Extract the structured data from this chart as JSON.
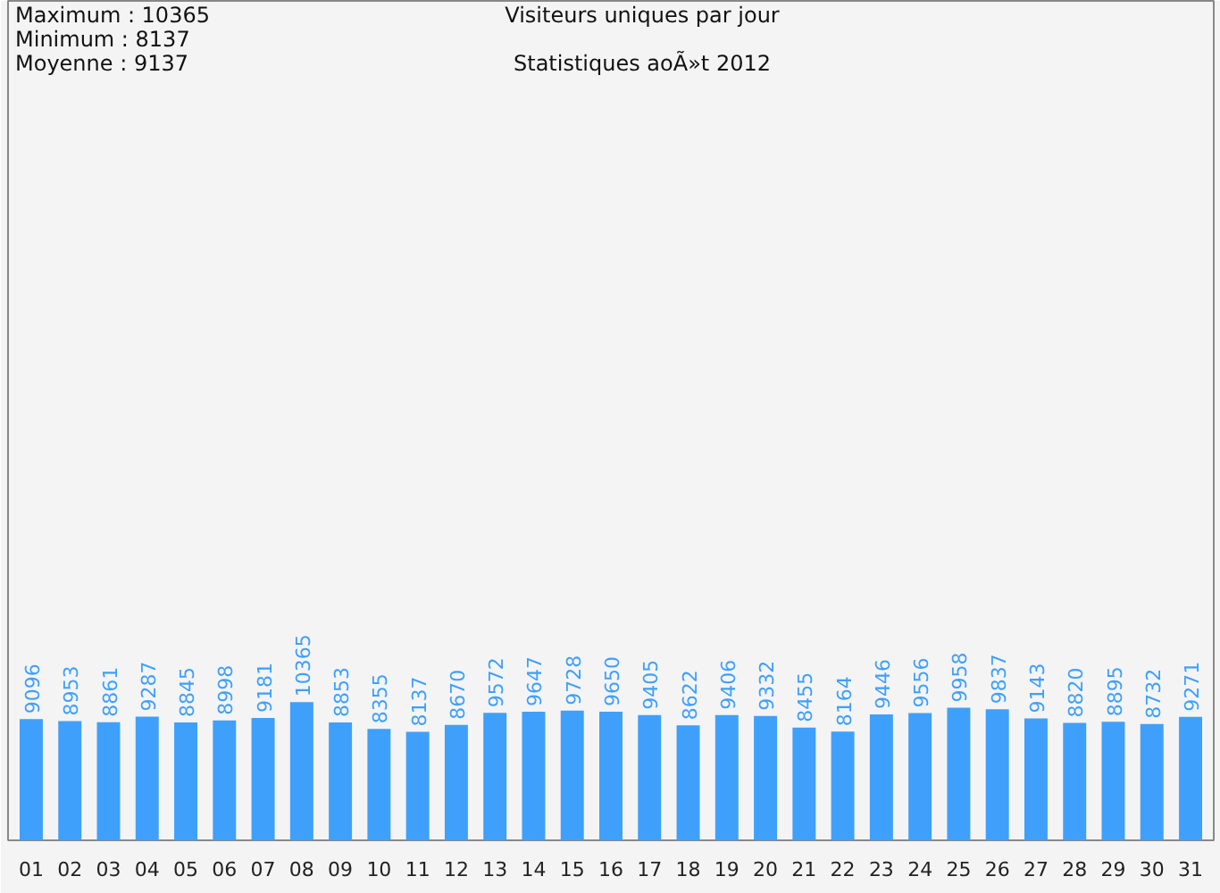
{
  "chart_data": {
    "type": "bar",
    "title": "Visiteurs uniques par jour",
    "subtitle": "Statistiques aoÃ»t 2012",
    "annotations": [
      "Maximum : 10365",
      "Minimum : 8137",
      "Moyenne : 9137"
    ],
    "categories": [
      "01",
      "02",
      "03",
      "04",
      "05",
      "06",
      "07",
      "08",
      "09",
      "10",
      "11",
      "12",
      "13",
      "14",
      "15",
      "16",
      "17",
      "18",
      "19",
      "20",
      "21",
      "22",
      "23",
      "24",
      "25",
      "26",
      "27",
      "28",
      "29",
      "30",
      "31"
    ],
    "values": [
      9096,
      8953,
      8861,
      9287,
      8845,
      8998,
      9181,
      10365,
      8853,
      8355,
      8137,
      8670,
      9572,
      9647,
      9728,
      9650,
      9405,
      8622,
      9406,
      9332,
      8455,
      8164,
      9446,
      9556,
      9958,
      9837,
      9143,
      8820,
      8895,
      8732,
      9271
    ],
    "color": "#3fa0fc",
    "data_labels": true,
    "ylim": [
      0,
      63000
    ],
    "grid": false
  }
}
